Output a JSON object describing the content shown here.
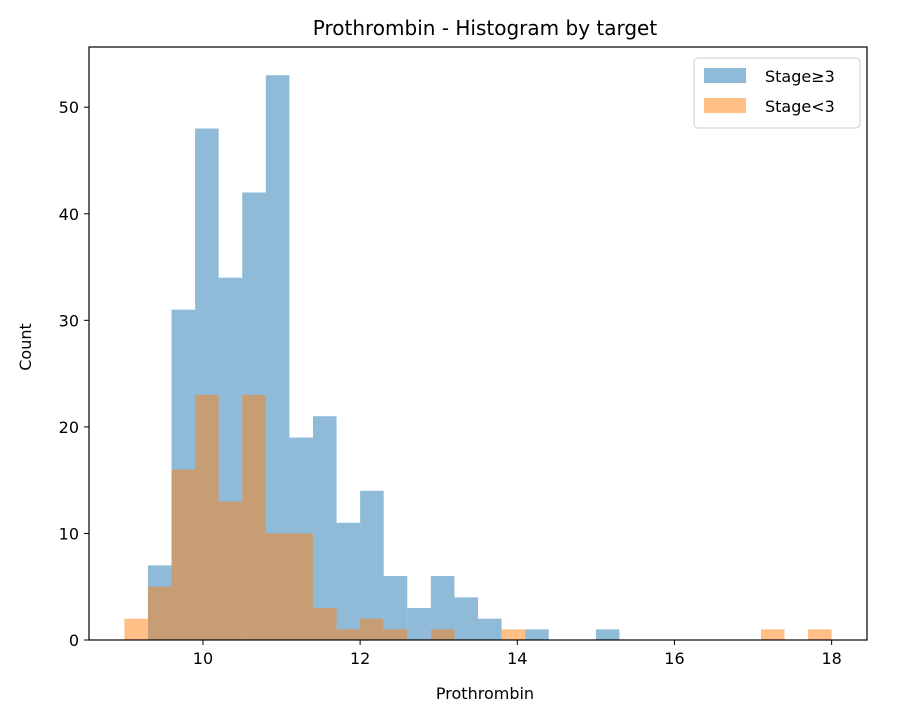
{
  "chart_data": {
    "type": "bar",
    "title": "Prothrombin - Histogram by target",
    "xlabel": "Prothrombin",
    "ylabel": "Count",
    "xlim": [
      8.55,
      18.45
    ],
    "ylim": [
      0,
      55.65
    ],
    "xticks": [
      10,
      12,
      14,
      16,
      18
    ],
    "yticks": [
      0,
      10,
      20,
      30,
      40,
      50
    ],
    "grid": false,
    "legend_position": "top-right",
    "series": [
      {
        "name": "Stage≥3",
        "color": "#1f77b4",
        "opacity": 0.5,
        "bins": [
          [
            9.3,
            9.6,
            7
          ],
          [
            9.6,
            9.9,
            31
          ],
          [
            9.9,
            10.2,
            48
          ],
          [
            10.2,
            10.5,
            34
          ],
          [
            10.5,
            10.8,
            42
          ],
          [
            10.8,
            11.1,
            53
          ],
          [
            11.1,
            11.4,
            19
          ],
          [
            11.4,
            11.7,
            21
          ],
          [
            11.7,
            12.0,
            11
          ],
          [
            12.0,
            12.3,
            14
          ],
          [
            12.3,
            12.6,
            6
          ],
          [
            12.6,
            12.9,
            3
          ],
          [
            12.9,
            13.2,
            6
          ],
          [
            13.2,
            13.5,
            4
          ],
          [
            13.5,
            13.8,
            2
          ],
          [
            14.1,
            14.4,
            1
          ],
          [
            15.0,
            15.3,
            1
          ]
        ]
      },
      {
        "name": "Stage<3",
        "color": "#ff7f0e",
        "opacity": 0.5,
        "bins": [
          [
            9.0,
            9.3,
            2
          ],
          [
            9.3,
            9.6,
            5
          ],
          [
            9.6,
            9.9,
            16
          ],
          [
            9.9,
            10.2,
            23
          ],
          [
            10.2,
            10.5,
            13
          ],
          [
            10.5,
            10.8,
            23
          ],
          [
            10.8,
            11.1,
            10
          ],
          [
            11.1,
            11.4,
            10
          ],
          [
            11.4,
            11.7,
            3
          ],
          [
            11.7,
            12.0,
            1
          ],
          [
            12.0,
            12.3,
            2
          ],
          [
            12.3,
            12.6,
            1
          ],
          [
            12.9,
            13.2,
            1
          ],
          [
            13.8,
            14.1,
            1
          ],
          [
            17.1,
            17.4,
            1
          ],
          [
            17.7,
            18.0,
            1
          ]
        ]
      }
    ]
  }
}
